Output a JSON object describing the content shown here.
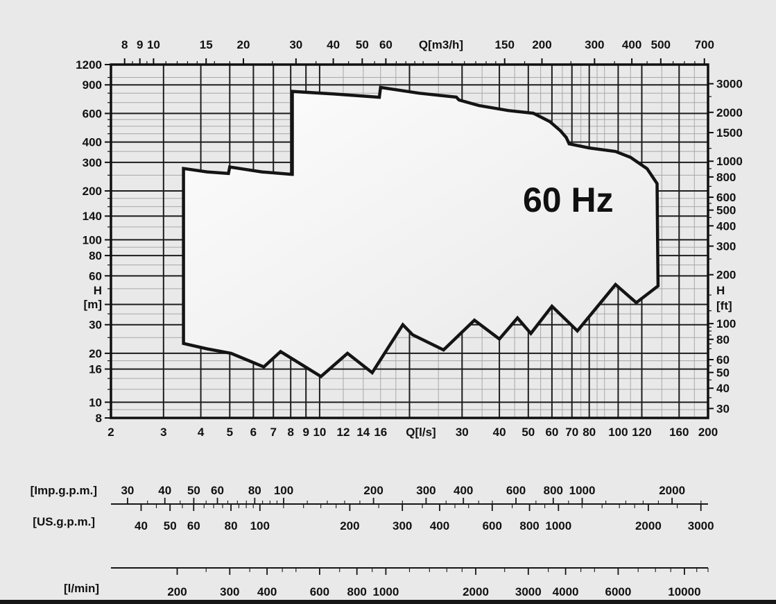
{
  "chart_data": {
    "type": "area",
    "title": "60 Hz",
    "annotation": {
      "text": "60 Hz",
      "q_ls": 68,
      "h_m": 178
    },
    "q_range_ls": [
      2,
      200
    ],
    "h_range_m": [
      8,
      1200
    ],
    "axes": {
      "top": {
        "label": "Q[m3/h]",
        "ls_factor": 3.6,
        "major": [
          8,
          9,
          10,
          15,
          20,
          30,
          40,
          50,
          60,
          150,
          200,
          300,
          400,
          500,
          700
        ],
        "minor": [
          8.5,
          9.5,
          11,
          12,
          13,
          14,
          16,
          18,
          25,
          35,
          45,
          55,
          65,
          70,
          75,
          80,
          90,
          100,
          110,
          120,
          130,
          140,
          175,
          250,
          350,
          450,
          550,
          600,
          650
        ]
      },
      "bottom": {
        "label": "Q[l/s]",
        "labels": [
          2,
          3,
          4,
          5,
          6,
          7,
          8,
          9,
          10,
          12,
          14,
          16,
          30,
          40,
          50,
          60,
          70,
          80,
          100,
          120,
          160,
          200
        ]
      },
      "left": {
        "label": "H",
        "unit": "[m]",
        "labeled": [
          1200,
          900,
          600,
          400,
          300,
          200,
          140,
          100,
          80,
          60,
          30,
          20,
          16,
          10,
          8
        ],
        "major": [
          8,
          10,
          16,
          20,
          30,
          40,
          60,
          80,
          100,
          140,
          200,
          300,
          400,
          600,
          900,
          1200
        ],
        "minor": [
          9,
          12,
          14,
          18,
          25,
          35,
          50,
          70,
          90,
          120,
          160,
          180,
          250,
          350,
          450,
          500,
          550,
          700,
          800,
          1000
        ]
      },
      "right": {
        "label": "H",
        "unit": "[ft]",
        "m_per_ft": 0.3048,
        "labeled": [
          3000,
          2000,
          1500,
          1000,
          800,
          600,
          500,
          400,
          300,
          200,
          100,
          80,
          60,
          50,
          40,
          30
        ],
        "minor": [
          2500,
          1200,
          900,
          700,
          550,
          450,
          350,
          250,
          150,
          120,
          95,
          90,
          85,
          75,
          70,
          55,
          45,
          35
        ]
      }
    },
    "grid": {
      "x_major": [
        2,
        3,
        4,
        5,
        6,
        7,
        8,
        9,
        10,
        20,
        30,
        40,
        50,
        60,
        70,
        80,
        100,
        120,
        160,
        200
      ],
      "x_minor": [
        12,
        14,
        16,
        18,
        25,
        35,
        45,
        55,
        65,
        75,
        85,
        90,
        110,
        140,
        180
      ],
      "y_major": [
        8,
        10,
        16,
        20,
        30,
        40,
        60,
        80,
        100,
        140,
        200,
        300,
        400,
        600,
        900,
        1200
      ],
      "y_minor": [
        9,
        12,
        14,
        18,
        25,
        35,
        50,
        70,
        90,
        120,
        160,
        180,
        250,
        350,
        450,
        500,
        550,
        700,
        800,
        1000
      ]
    },
    "envelope_q_h": [
      [
        3.5,
        23
      ],
      [
        3.5,
        275
      ],
      [
        4.2,
        262
      ],
      [
        4.95,
        256
      ],
      [
        5.0,
        281
      ],
      [
        6.4,
        262
      ],
      [
        8.05,
        253
      ],
      [
        8.1,
        253
      ],
      [
        8.1,
        820
      ],
      [
        11.3,
        790
      ],
      [
        15.85,
        755
      ],
      [
        16,
        868
      ],
      [
        21.5,
        800
      ],
      [
        28.7,
        756
      ],
      [
        29.3,
        726
      ],
      [
        34.2,
        671
      ],
      [
        43,
        625
      ],
      [
        52,
        602
      ],
      [
        59,
        535
      ],
      [
        64,
        470
      ],
      [
        67,
        427
      ],
      [
        68.5,
        390
      ],
      [
        80,
        368
      ],
      [
        98,
        350
      ],
      [
        110,
        322
      ],
      [
        125,
        274
      ],
      [
        135,
        222
      ],
      [
        136,
        52
      ],
      [
        115,
        41
      ],
      [
        98,
        53
      ],
      [
        73,
        27.5
      ],
      [
        60,
        39
      ],
      [
        51,
        26.5
      ],
      [
        46,
        33
      ],
      [
        40,
        24.5
      ],
      [
        33,
        32
      ],
      [
        26,
        21
      ],
      [
        20.5,
        26
      ],
      [
        19,
        30
      ],
      [
        15,
        15.2
      ],
      [
        12.4,
        20
      ],
      [
        10.1,
        14.4
      ],
      [
        7.4,
        20.5
      ],
      [
        6.5,
        16.5
      ],
      [
        5.05,
        20
      ],
      [
        4.2,
        21.3
      ]
    ]
  },
  "rulers": [
    {
      "label": "[Imp.g.p.m.]",
      "ls_factor": 13.198,
      "line": 0,
      "side": "above",
      "major": [
        30,
        40,
        50,
        60,
        80,
        100,
        200,
        300,
        400,
        600,
        800,
        1000,
        2000
      ],
      "minor": [
        35,
        45,
        55,
        65,
        70,
        75,
        85,
        90,
        95,
        120,
        140,
        160,
        180,
        250,
        350,
        450,
        500,
        700,
        900,
        1200,
        1400,
        1600,
        1800,
        2500
      ]
    },
    {
      "label": "[US.g.p.m.]",
      "ls_factor": 15.85,
      "line": 0,
      "side": "below",
      "major": [
        40,
        50,
        60,
        80,
        100,
        200,
        300,
        400,
        600,
        800,
        1000,
        2000,
        3000
      ],
      "minor": [
        45,
        55,
        65,
        70,
        75,
        85,
        90,
        95,
        120,
        140,
        160,
        180,
        250,
        350,
        450,
        500,
        700,
        900,
        1200,
        1400,
        1600,
        1800,
        2500
      ]
    },
    {
      "label": "[l/min]",
      "ls_factor": 60,
      "line": 1,
      "side": "below",
      "major": [
        200,
        300,
        400,
        600,
        800,
        1000,
        2000,
        3000,
        4000,
        6000,
        10000
      ],
      "minor": [
        250,
        350,
        450,
        500,
        700,
        900,
        1200,
        1400,
        1600,
        1800,
        2500,
        3500,
        4500,
        5000,
        7000,
        8000,
        9000,
        11000,
        12000
      ]
    }
  ],
  "colors": {
    "background": "#e9e9e9",
    "grid_minor": "#a8a8a8",
    "grid_major": "#1d1d1d",
    "frame": "#101010",
    "envelope_stroke": "#141414",
    "envelope_fill_start": "#fdfdfd",
    "envelope_fill_end": "#e8e8e8",
    "ruler_line": "#161616",
    "text": "#111111",
    "bottom_bar": "#161616"
  }
}
